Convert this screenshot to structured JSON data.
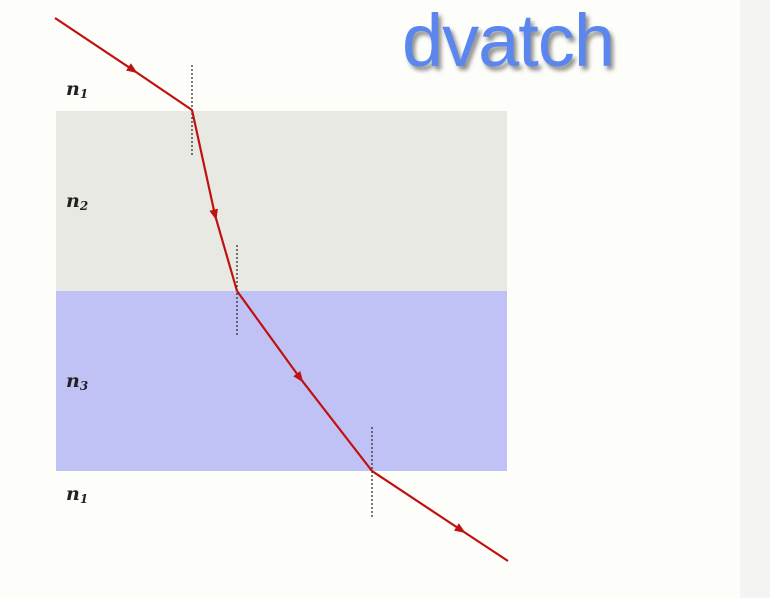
{
  "watermark": "dvatch",
  "media": [
    {
      "name": "n",
      "sub": "1",
      "color": "#fdfdf9"
    },
    {
      "name": "n",
      "sub": "2",
      "color": "#e9e9e4"
    },
    {
      "name": "n",
      "sub": "3",
      "color": "#c0c2f5"
    },
    {
      "name": "n",
      "sub": "1",
      "color": "#fdfdf9"
    }
  ],
  "ray_color": "#c01010"
}
